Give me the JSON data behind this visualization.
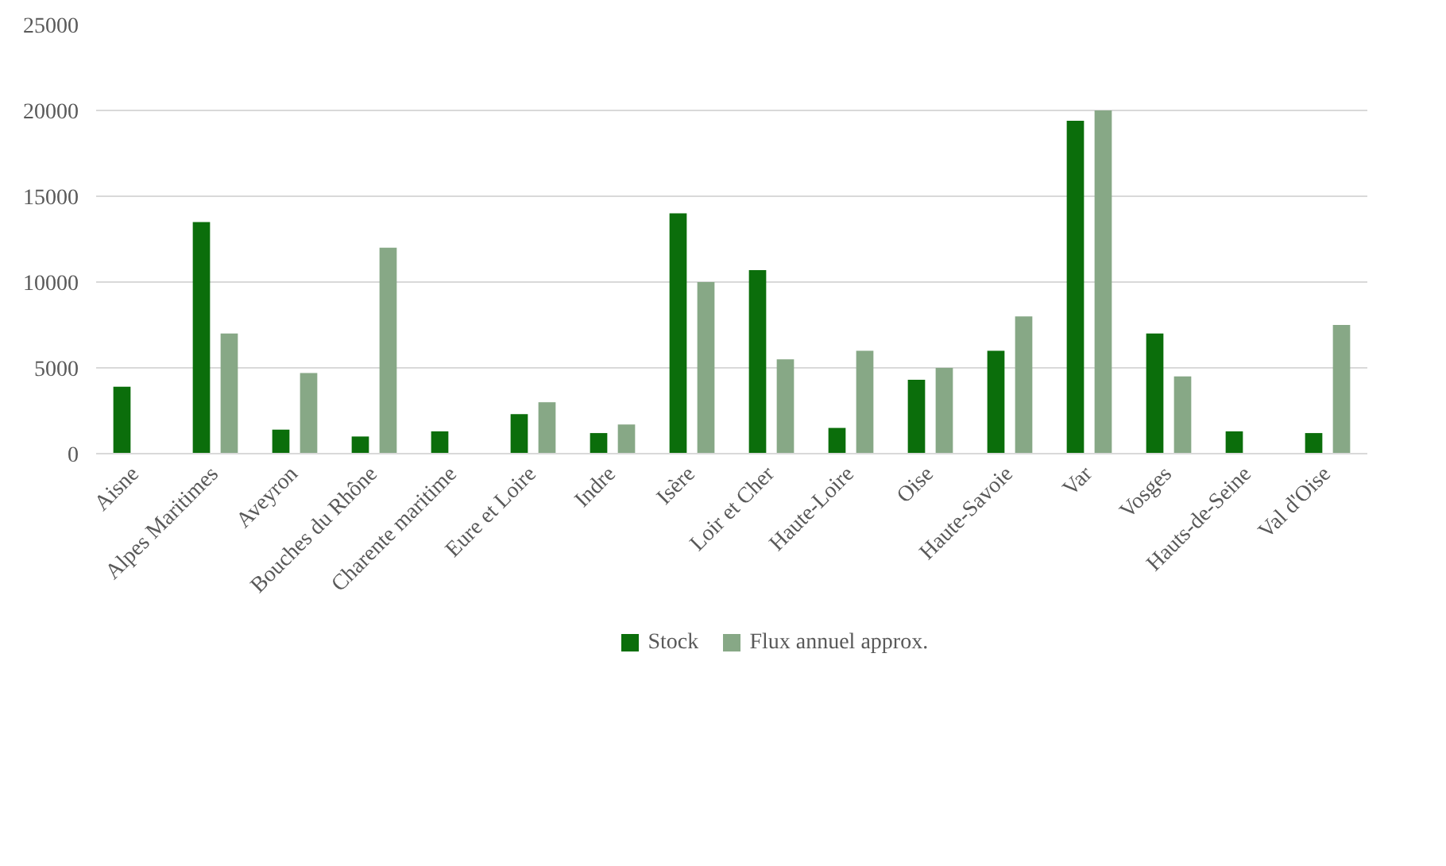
{
  "chart_data": {
    "type": "bar",
    "categories": [
      "Aisne",
      "Alpes Maritimes",
      "Aveyron",
      "Bouches du Rhône",
      "Charente maritime",
      "Eure et Loire",
      "Indre",
      "Isère",
      "Loir et Cher",
      "Haute-Loire",
      "Oise",
      "Haute-Savoie",
      "Var",
      "Vosges",
      "Hauts-de-Seine",
      "Val d'Oise"
    ],
    "series": [
      {
        "name": "Stock",
        "color": "#0b6e0b",
        "values": [
          3900,
          13500,
          1400,
          1000,
          1300,
          2300,
          1200,
          14000,
          10700,
          1500,
          4300,
          6000,
          19400,
          7000,
          1300,
          1200
        ]
      },
      {
        "name": "Flux annuel approx.",
        "color": "#87a886",
        "values": [
          null,
          7000,
          4700,
          12000,
          null,
          3000,
          1700,
          10000,
          5500,
          6000,
          5000,
          8000,
          20000,
          4500,
          null,
          7500
        ]
      }
    ],
    "ylim": [
      0,
      25000
    ],
    "yticks": [
      0,
      5000,
      10000,
      15000,
      20000,
      25000
    ],
    "grid": "y",
    "legend": "bottom"
  }
}
